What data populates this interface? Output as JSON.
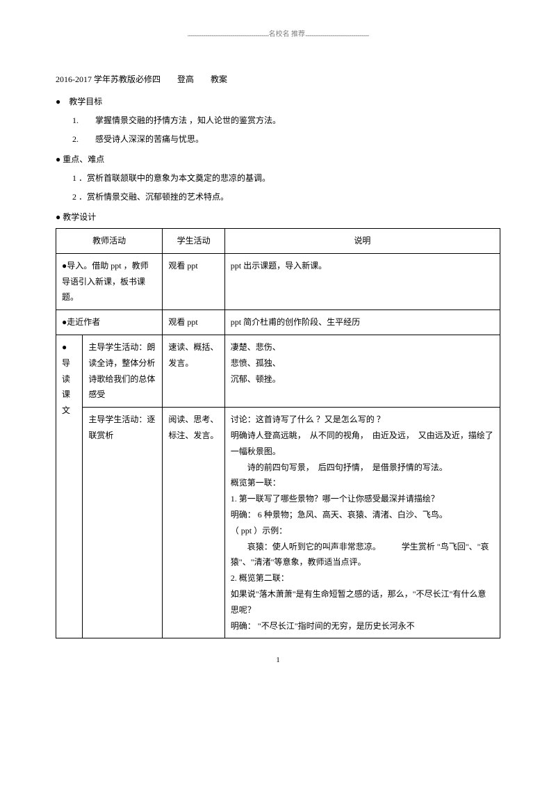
{
  "header": {
    "text": "名校名 推荐",
    "dots_left": "..............................................................................",
    "dots_right": "............................................................."
  },
  "title": "2016-2017 学年苏教版必修四　　登高　　教案",
  "objectives": {
    "heading": "●　教学目标",
    "items": [
      "1.　　掌握情景交融的抒情方法 ，知人论世的鉴赏方法。",
      "2.　　感受诗人深深的苦痛与忧思。"
    ]
  },
  "keypoints": {
    "heading": "● 重点、难点",
    "items": [
      "1 ．赏析首联颔联中的意象为本文奠定的悲凉的基调。",
      "2 ．赏析情景交融、沉郁顿挫的艺术特点。"
    ]
  },
  "design_heading": "● 教学设计",
  "table": {
    "header": {
      "c1": "教师活动",
      "c2": "学生活动",
      "c3": "说明"
    },
    "rows": [
      {
        "teacher": "●导入。借助 ppt ，教师导语引入新课，板书课题。",
        "student": "观看 ppt",
        "note": "ppt 出示课题，导入新课。"
      },
      {
        "teacher": "●走近作者",
        "student": "观看 ppt",
        "note": "ppt 简介杜甫的创作阶段、生平经历"
      },
      {
        "c1": "●\n导读课文",
        "c2": "主导学生活动：朗读全诗，整体分析诗歌给我们的总体感受",
        "student": "速读、概括、发言。",
        "note": "凄楚、悲伤、\n悲愤、孤独、\n沉郁、顿挫。"
      },
      {
        "c2": "主导学生活动：逐联赏析",
        "student": "阅读、思考、标注、发言。",
        "note_lines": [
          "讨论：这首诗写了什么 ？又是怎么写的 ？",
          "明确诗人登高远眺，　从不同的视角，　由近及远，　又由远及近，描绘了一幅秋景图。",
          "　　诗的前四句写景，　后四句抒情，　是借景抒情的写法。",
          "概览第一联：",
          "1. 第一联写了哪些景物？哪一个让你感受最深并请描绘？",
          "明确： 6 种景物；急风、高天、哀猿、清渚、白沙、飞鸟。",
          "（ ppt ）示例：",
          "　　哀猿：使人听到它的叫声非常悲凉。　　　学生赏析 \"鸟飞回\"、\"哀猿\"、\"清渚\"等意象，教师适当点评。",
          "2. 概览第二联：",
          "如果说\"落木萧萧\"是有生命短暂之感的话，那么，\"不尽长江\"有什么意思呢？",
          "明确： \"不尽长江\"指时间的无穷，是历史长河永不"
        ]
      }
    ]
  },
  "page_number": "1"
}
